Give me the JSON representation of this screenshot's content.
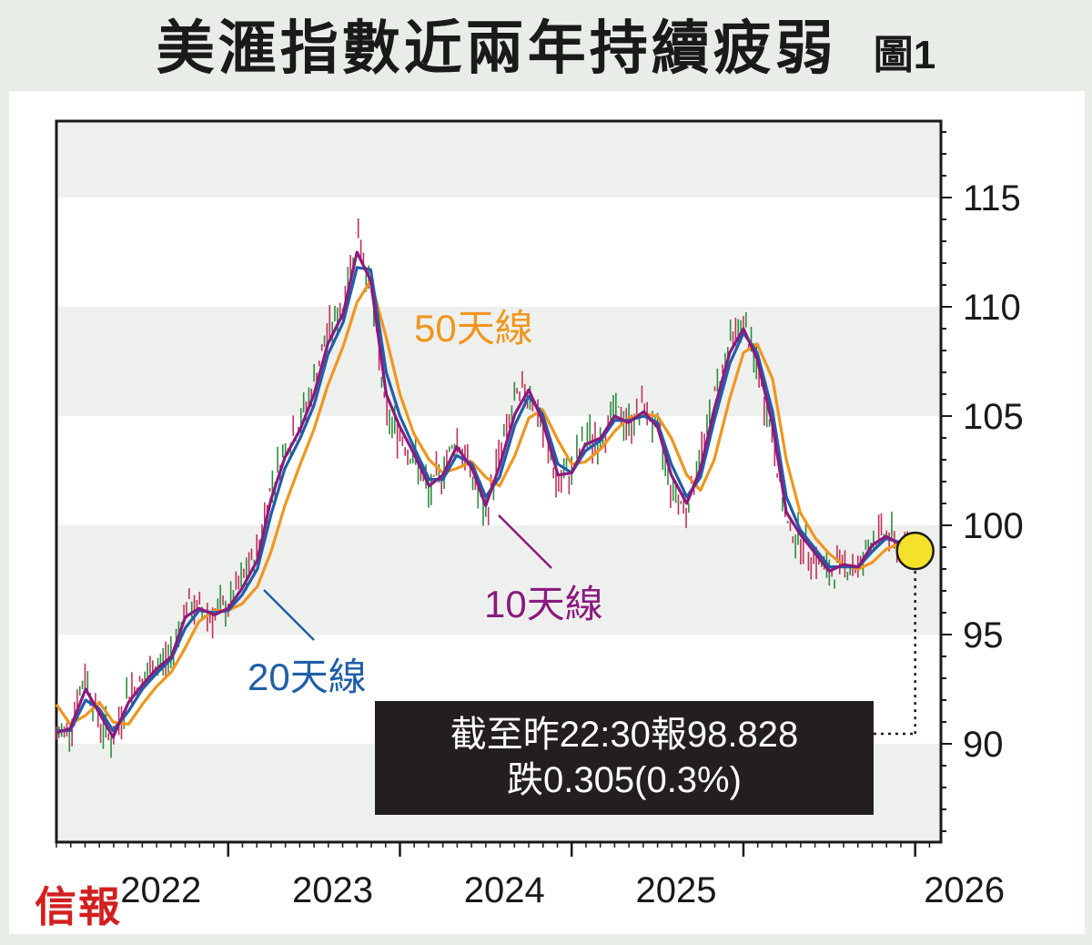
{
  "figure_label": "圖1",
  "publisher": "信報",
  "chart_data": {
    "type": "line",
    "title": "美滙指數近兩年持續疲弱",
    "xlabel": "",
    "ylabel": "",
    "ylim": [
      85.5,
      118.5
    ],
    "xlim": [
      2021.0,
      2026.15
    ],
    "yticks": [
      90,
      95,
      100,
      105,
      110,
      115
    ],
    "xticks": [
      {
        "label": "2022",
        "x": 2022.0
      },
      {
        "label": "2023",
        "x": 2023.0
      },
      {
        "label": "2024",
        "x": 2024.0
      },
      {
        "label": "2025",
        "x": 2025.0
      },
      {
        "label": "2026",
        "x": 2026.0
      }
    ],
    "price_series": {
      "name": "美滙指數",
      "x": [
        2021.0,
        2021.08,
        2021.17,
        2021.25,
        2021.33,
        2021.42,
        2021.5,
        2021.58,
        2021.67,
        2021.75,
        2021.83,
        2021.92,
        2022.0,
        2022.08,
        2022.17,
        2022.25,
        2022.33,
        2022.42,
        2022.5,
        2022.58,
        2022.67,
        2022.75,
        2022.83,
        2022.92,
        2023.0,
        2023.08,
        2023.17,
        2023.25,
        2023.33,
        2023.42,
        2023.5,
        2023.58,
        2023.67,
        2023.75,
        2023.83,
        2023.92,
        2024.0,
        2024.08,
        2024.17,
        2024.25,
        2024.33,
        2024.42,
        2024.5,
        2024.58,
        2024.67,
        2024.75,
        2024.83,
        2024.92,
        2025.0,
        2025.08,
        2025.17,
        2025.25,
        2025.33,
        2025.42,
        2025.5,
        2025.58,
        2025.67,
        2025.75,
        2025.83,
        2025.92,
        2026.0
      ],
      "values": [
        90.3,
        90.8,
        93.2,
        91.0,
        90.1,
        92.4,
        92.8,
        93.6,
        94.0,
        96.3,
        96.1,
        95.9,
        96.3,
        97.4,
        98.8,
        101.8,
        103.5,
        104.7,
        106.5,
        108.8,
        110.0,
        113.6,
        110.8,
        105.0,
        104.2,
        103.0,
        101.5,
        102.6,
        104.0,
        102.3,
        100.4,
        103.3,
        105.6,
        106.3,
        104.5,
        101.8,
        102.5,
        104.0,
        103.9,
        105.3,
        104.6,
        105.4,
        104.3,
        101.7,
        100.8,
        103.1,
        105.8,
        108.4,
        109.2,
        107.2,
        104.0,
        100.0,
        99.4,
        98.5,
        97.7,
        98.3,
        98.0,
        99.4,
        99.6,
        98.9,
        98.8
      ]
    },
    "series": [
      {
        "name": "10天線",
        "color": "#8b1a7f",
        "values": [
          90.5,
          90.7,
          92.5,
          91.4,
          90.3,
          91.9,
          92.7,
          93.4,
          94.0,
          95.8,
          96.2,
          95.9,
          96.2,
          97.1,
          98.4,
          101.2,
          103.1,
          104.4,
          106.0,
          108.3,
          109.7,
          112.5,
          111.2,
          106.0,
          104.5,
          103.3,
          101.8,
          102.3,
          103.6,
          102.6,
          100.9,
          102.7,
          105.1,
          106.2,
          104.8,
          102.3,
          102.4,
          103.7,
          104.0,
          105.0,
          104.7,
          105.2,
          104.5,
          102.3,
          101.0,
          102.6,
          105.3,
          107.9,
          109.0,
          107.6,
          104.6,
          100.6,
          99.6,
          98.7,
          97.9,
          98.2,
          98.1,
          99.1,
          99.5,
          99.1,
          98.9
        ]
      },
      {
        "name": "20天線",
        "color": "#1f5fa8",
        "values": [
          90.6,
          90.6,
          92.0,
          91.6,
          90.6,
          91.5,
          92.5,
          93.2,
          93.9,
          95.3,
          96.1,
          96.0,
          96.1,
          96.8,
          98.0,
          100.5,
          102.6,
          104.0,
          105.5,
          107.8,
          109.3,
          111.8,
          111.7,
          107.0,
          105.0,
          103.6,
          102.1,
          102.1,
          103.2,
          102.8,
          101.3,
          102.2,
          104.6,
          105.9,
          105.1,
          102.8,
          102.4,
          103.4,
          103.9,
          104.8,
          104.8,
          105.0,
          104.7,
          102.8,
          101.3,
          102.2,
          104.8,
          107.4,
          108.8,
          107.9,
          105.2,
          101.3,
          99.8,
          98.9,
          98.1,
          98.1,
          98.1,
          98.8,
          99.4,
          99.2,
          99.0
        ]
      },
      {
        "name": "50天線",
        "color": "#f0961e",
        "values": [
          91.8,
          90.9,
          91.3,
          91.9,
          91.0,
          90.9,
          91.8,
          92.6,
          93.3,
          94.4,
          95.6,
          96.1,
          96.1,
          96.4,
          97.2,
          98.8,
          100.9,
          102.8,
          104.4,
          106.4,
          108.2,
          110.2,
          111.2,
          108.6,
          106.0,
          104.2,
          103.0,
          102.4,
          102.6,
          102.9,
          102.2,
          101.8,
          103.2,
          104.9,
          105.3,
          103.9,
          102.8,
          102.9,
          103.5,
          104.3,
          104.9,
          105.1,
          105.0,
          104.0,
          102.3,
          101.6,
          103.0,
          105.8,
          107.9,
          108.3,
          106.7,
          103.0,
          100.6,
          99.4,
          98.7,
          98.2,
          98.0,
          98.3,
          98.9,
          99.2,
          99.1
        ]
      }
    ],
    "annotations": {
      "label_10": "10天線",
      "label_20": "20天線",
      "label_50": "50天線",
      "quote_line1": "截至昨22:30報98.828",
      "quote_line2": "跌0.305(0.3%)",
      "latest_value": 98.828,
      "latest_x": 2026.0
    }
  },
  "colors": {
    "band_gray": "#eef0ee",
    "axis": "#1a1a1a",
    "candle_up": "#2e8b3e",
    "candle_down": "#c0305a",
    "marker_fill": "#f4e12a",
    "label_10": "#8b1a7f",
    "label_20": "#1f5fa8",
    "label_50": "#f0961e"
  }
}
